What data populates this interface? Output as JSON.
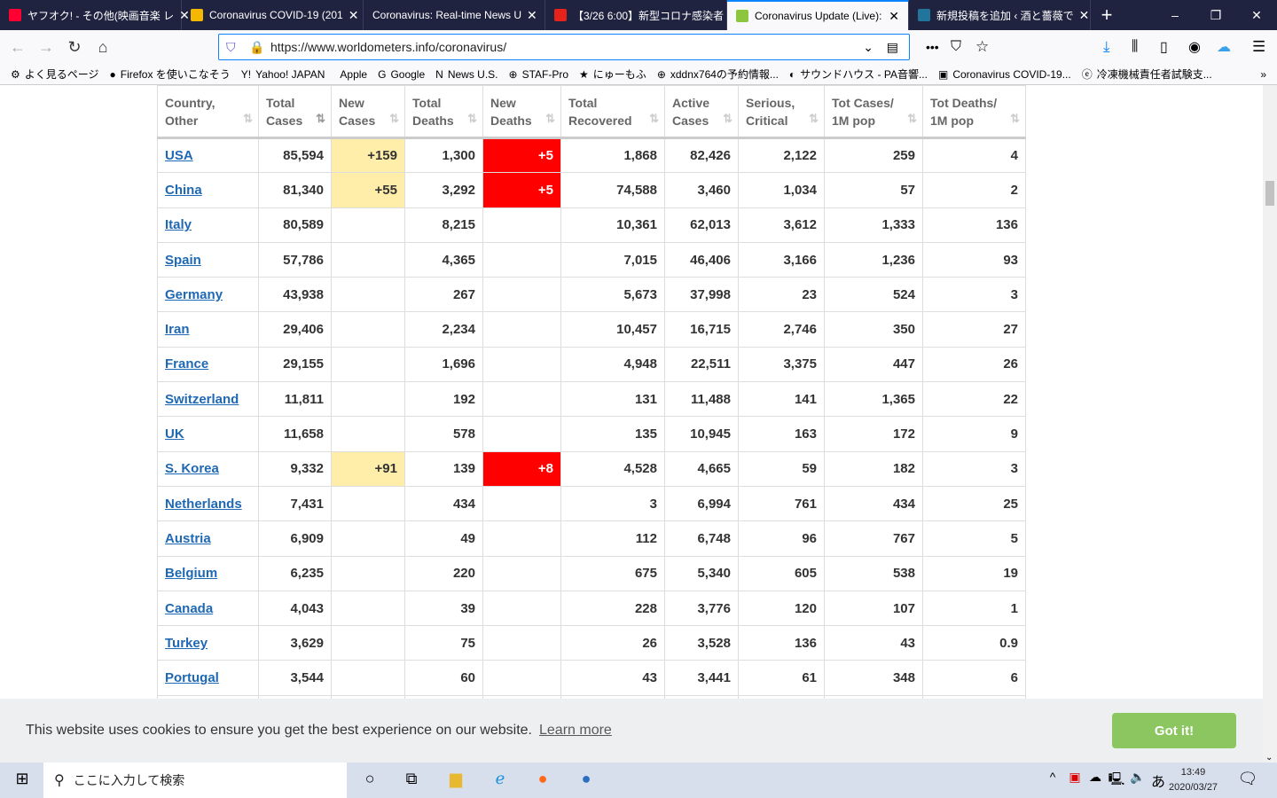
{
  "browser": {
    "tabs": [
      {
        "label": "ヤフオク! - その他(映画音楽 レ",
        "icon": "yahoo-auction-icon",
        "color": "#ff0033"
      },
      {
        "label": "Coronavirus COVID-19 (201",
        "icon": "arcgis-icon",
        "color": "#f5b800"
      },
      {
        "label": "Coronavirus: Real-time News U",
        "icon": "",
        "color": ""
      },
      {
        "label": "【3/26 6:00】新型コロナ感染者",
        "icon": "news-n-icon",
        "color": "#e5231b"
      },
      {
        "label": "Coronavirus Update (Live):",
        "icon": "worldometers-icon",
        "color": "#8cc63f",
        "active": true
      },
      {
        "label": "新規投稿を追加 ‹ 酒と薔薇で",
        "icon": "wordpress-icon",
        "color": "#21759b"
      }
    ],
    "url": "https://www.worldometers.info/coronavirus/",
    "bookmarks": [
      "よく見るページ",
      "Firefox を使いこなそう",
      "Yahoo! JAPAN",
      "Apple",
      "Google",
      "News U.S.",
      "STAF-Pro",
      "にゅーもふ",
      "xddnx764の予約情報...",
      "サウンドハウス - PA音響...",
      "Coronavirus COVID-19...",
      "冷凍機械責任者試験支..."
    ]
  },
  "table": {
    "headers": [
      [
        "Country,",
        "Other"
      ],
      [
        "Total",
        "Cases"
      ],
      [
        "New",
        "Cases"
      ],
      [
        "Total",
        "Deaths"
      ],
      [
        "New",
        "Deaths"
      ],
      [
        "Total",
        "Recovered"
      ],
      [
        "Active",
        "Cases"
      ],
      [
        "Serious,",
        "Critical"
      ],
      [
        "Tot Cases/",
        "1M pop"
      ],
      [
        "Tot Deaths/",
        "1M pop"
      ]
    ],
    "rows": [
      [
        "USA",
        "85,594",
        "+159",
        "1,300",
        "+5",
        "1,868",
        "82,426",
        "2,122",
        "259",
        "4"
      ],
      [
        "China",
        "81,340",
        "+55",
        "3,292",
        "+5",
        "74,588",
        "3,460",
        "1,034",
        "57",
        "2"
      ],
      [
        "Italy",
        "80,589",
        "",
        "8,215",
        "",
        "10,361",
        "62,013",
        "3,612",
        "1,333",
        "136"
      ],
      [
        "Spain",
        "57,786",
        "",
        "4,365",
        "",
        "7,015",
        "46,406",
        "3,166",
        "1,236",
        "93"
      ],
      [
        "Germany",
        "43,938",
        "",
        "267",
        "",
        "5,673",
        "37,998",
        "23",
        "524",
        "3"
      ],
      [
        "Iran",
        "29,406",
        "",
        "2,234",
        "",
        "10,457",
        "16,715",
        "2,746",
        "350",
        "27"
      ],
      [
        "France",
        "29,155",
        "",
        "1,696",
        "",
        "4,948",
        "22,511",
        "3,375",
        "447",
        "26"
      ],
      [
        "Switzerland",
        "11,811",
        "",
        "192",
        "",
        "131",
        "11,488",
        "141",
        "1,365",
        "22"
      ],
      [
        "UK",
        "11,658",
        "",
        "578",
        "",
        "135",
        "10,945",
        "163",
        "172",
        "9"
      ],
      [
        "S. Korea",
        "9,332",
        "+91",
        "139",
        "+8",
        "4,528",
        "4,665",
        "59",
        "182",
        "3"
      ],
      [
        "Netherlands",
        "7,431",
        "",
        "434",
        "",
        "3",
        "6,994",
        "761",
        "434",
        "25"
      ],
      [
        "Austria",
        "6,909",
        "",
        "49",
        "",
        "112",
        "6,748",
        "96",
        "767",
        "5"
      ],
      [
        "Belgium",
        "6,235",
        "",
        "220",
        "",
        "675",
        "5,340",
        "605",
        "538",
        "19"
      ],
      [
        "Canada",
        "4,043",
        "",
        "39",
        "",
        "228",
        "3,776",
        "120",
        "107",
        "1"
      ],
      [
        "Turkey",
        "3,629",
        "",
        "75",
        "",
        "26",
        "3,528",
        "136",
        "43",
        "0.9"
      ],
      [
        "Portugal",
        "3,544",
        "",
        "60",
        "",
        "43",
        "3,441",
        "61",
        "348",
        "6"
      ]
    ]
  },
  "cookie": {
    "message": "This website uses cookies to ensure you get the best experience on our website.",
    "learn_more": "Learn more",
    "button": "Got it!"
  },
  "taskbar": {
    "search_placeholder": "ここに入力して検索",
    "ime": "あ",
    "time": "13:49",
    "date": "2020/03/27"
  }
}
